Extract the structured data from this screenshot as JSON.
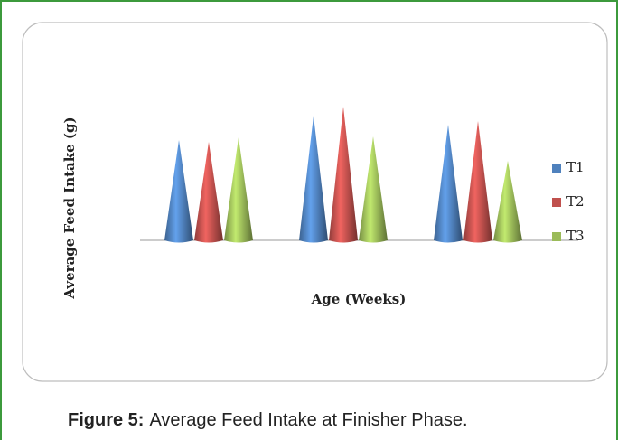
{
  "chart_data": {
    "type": "cone",
    "y_label": "Average Feed Intake (g)",
    "x_label": "Age (Weeks)",
    "categories": [
      null,
      null,
      null
    ],
    "series": [
      {
        "name": "T1",
        "color": "#4f81bd",
        "values": [
          111,
          138,
          128
        ]
      },
      {
        "name": "T2",
        "color": "#c0504d",
        "values": [
          109,
          148,
          132
        ]
      },
      {
        "name": "T3",
        "color": "#9bbb59",
        "values": [
          114,
          115,
          88
        ]
      }
    ],
    "ylim": [
      0,
      150
    ],
    "legend": "right"
  },
  "caption": {
    "label": "Figure 5:",
    "text": "Average Feed Intake at Finisher Phase."
  }
}
